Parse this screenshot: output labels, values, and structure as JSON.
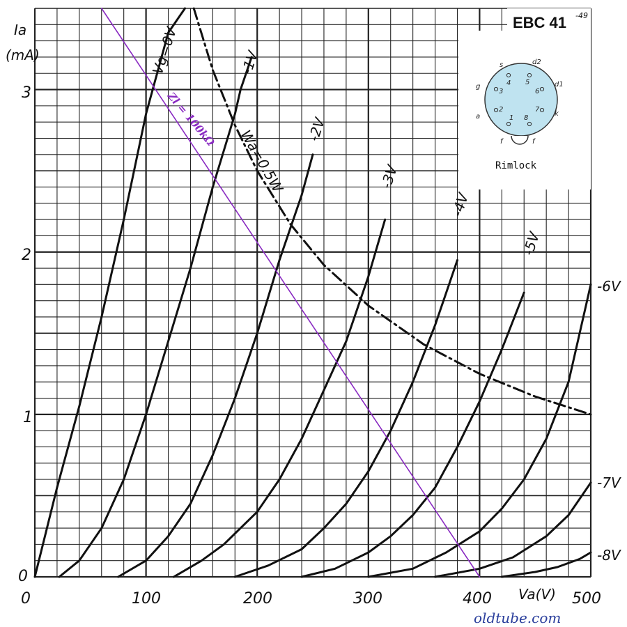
{
  "chart_data": {
    "type": "line",
    "title": "EBC 41",
    "title_suffix": "-49",
    "xlabel": "Va(V)",
    "ylabel_top": "Ia",
    "ylabel_unit": "(mA)",
    "xlim": [
      0,
      500
    ],
    "ylim": [
      0,
      3.5
    ],
    "x_ticks": [
      0,
      100,
      200,
      300,
      400,
      500
    ],
    "x_tick_labels": [
      "0",
      "100",
      "200",
      "300",
      "400",
      "500"
    ],
    "y_ticks": [
      0,
      1,
      2,
      3
    ],
    "y_tick_labels": [
      "0",
      "1",
      "2",
      "3"
    ],
    "grid": true,
    "series": [
      {
        "name": "Vg=0V",
        "x": [
          0,
          20,
          40,
          60,
          80,
          100,
          120,
          135
        ],
        "y": [
          0,
          0.55,
          1.05,
          1.6,
          2.2,
          2.85,
          3.35,
          3.5
        ]
      },
      {
        "name": "-1V",
        "x": [
          22,
          40,
          60,
          80,
          100,
          120,
          140,
          160,
          180,
          185,
          195
        ],
        "y": [
          0,
          0.1,
          0.3,
          0.6,
          1.0,
          1.45,
          1.9,
          2.4,
          2.85,
          3.0,
          3.2
        ]
      },
      {
        "name": "-2V",
        "x": [
          75,
          100,
          120,
          140,
          160,
          180,
          200,
          220,
          240,
          250
        ],
        "y": [
          0,
          0.1,
          0.25,
          0.45,
          0.75,
          1.1,
          1.5,
          1.95,
          2.35,
          2.6
        ]
      },
      {
        "name": "-3V",
        "x": [
          125,
          150,
          170,
          200,
          220,
          240,
          260,
          280,
          300,
          315
        ],
        "y": [
          0,
          0.1,
          0.2,
          0.4,
          0.6,
          0.85,
          1.15,
          1.45,
          1.85,
          2.2
        ]
      },
      {
        "name": "-4V",
        "x": [
          180,
          210,
          240,
          260,
          280,
          300,
          320,
          340,
          360,
          380
        ],
        "y": [
          0,
          0.07,
          0.17,
          0.3,
          0.45,
          0.65,
          0.9,
          1.2,
          1.55,
          1.95
        ]
      },
      {
        "name": "-5V",
        "x": [
          240,
          270,
          300,
          320,
          340,
          360,
          380,
          400,
          420,
          440
        ],
        "y": [
          0,
          0.05,
          0.15,
          0.25,
          0.38,
          0.55,
          0.8,
          1.08,
          1.4,
          1.75
        ]
      },
      {
        "name": "-6V",
        "x": [
          300,
          340,
          370,
          400,
          420,
          440,
          460,
          480,
          500
        ],
        "y": [
          0,
          0.05,
          0.15,
          0.28,
          0.42,
          0.6,
          0.85,
          1.2,
          1.8
        ]
      },
      {
        "name": "-7V",
        "x": [
          360,
          400,
          430,
          460,
          480,
          500
        ],
        "y": [
          0,
          0.05,
          0.12,
          0.25,
          0.38,
          0.58
        ]
      },
      {
        "name": "-8V",
        "x": [
          420,
          450,
          470,
          490,
          500
        ],
        "y": [
          0,
          0.03,
          0.06,
          0.11,
          0.15
        ]
      },
      {
        "name": "Wa=0.5W",
        "x": [
          143,
          160,
          180,
          200,
          230,
          260,
          300,
          350,
          400,
          450,
          500
        ],
        "y": [
          3.5,
          3.12,
          2.78,
          2.5,
          2.17,
          1.92,
          1.67,
          1.43,
          1.25,
          1.11,
          1.0
        ]
      },
      {
        "name": "Zl = 100kΩ",
        "x": [
          60,
          400
        ],
        "y": [
          3.5,
          0
        ]
      }
    ],
    "colors": {
      "curves": "#111111",
      "grid": "#222222",
      "load_line": "#8a2bc2",
      "base_diagram": "#bfe3f0"
    }
  },
  "labels": {
    "title": "EBC 41",
    "title_suffix": "-49",
    "ia": "Ia",
    "ia_unit": "(mA)",
    "va": "Va(V)",
    "vg0": "Vg=0V",
    "vg1": "-1V",
    "vg2": "-2V",
    "vg3": "-3V",
    "vg4": "-4V",
    "vg5": "-5V",
    "vg6": "-6V",
    "vg7": "-7V",
    "vg8": "-8V",
    "wa": "Wa=0.5W",
    "load": "Zl = 100kΩ",
    "base": "Rimlock",
    "source": "oldtube.com"
  },
  "base_pins": {
    "s": "s",
    "d2": "d2",
    "d1": "d1",
    "g": "g",
    "a": "a",
    "k": "k",
    "f_left": "f",
    "f_right": "f",
    "p1": "1",
    "p2": "2",
    "p3": "3",
    "p4": "4",
    "p5": "5",
    "p6": "6",
    "p7": "7",
    "p8": "8"
  }
}
